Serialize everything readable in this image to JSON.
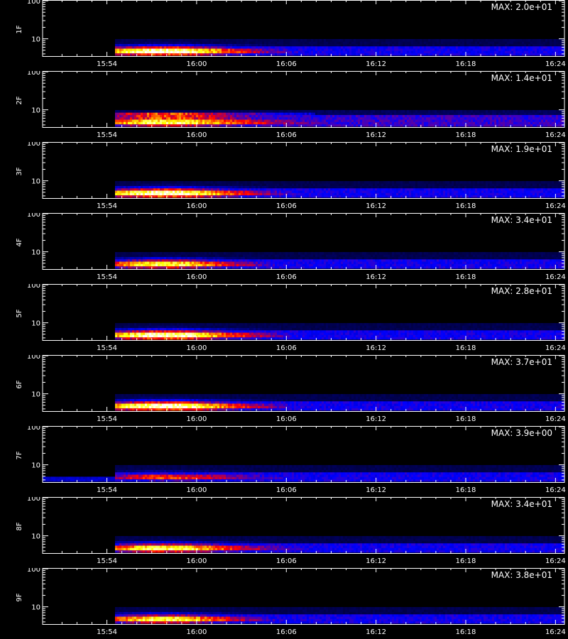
{
  "chart_data": {
    "type": "heatmap",
    "colormap": [
      "#000000",
      "#0000ff",
      "#ff0000",
      "#ffff00",
      "#ffffff"
    ],
    "x_ticks": [
      "15:54",
      "16:00",
      "16:06",
      "16:12",
      "16:18",
      "16:24"
    ],
    "x_range_minutes": [
      -4.3,
      30.6
    ],
    "x_tick_minutes": [
      0,
      6,
      12,
      18,
      24,
      30
    ],
    "y_scale": "log",
    "ylim": [
      3.5,
      105
    ],
    "y_tick_labels": [
      "10",
      "100"
    ],
    "y_tick_values": [
      10,
      100
    ],
    "xlabel": "",
    "panels": [
      {
        "label": "1F",
        "max": "MAX: 2.0e+01",
        "profile": "strong"
      },
      {
        "label": "2F",
        "max": "MAX: 1.4e+01",
        "profile": "broad"
      },
      {
        "label": "3F",
        "max": "MAX: 1.9e+01",
        "profile": "strong"
      },
      {
        "label": "4F",
        "max": "MAX: 3.4e+01",
        "profile": "medium"
      },
      {
        "label": "5F",
        "max": "MAX: 2.8e+01",
        "profile": "strong"
      },
      {
        "label": "6F",
        "max": "MAX: 3.7e+01",
        "profile": "strong"
      },
      {
        "label": "7F",
        "max": "MAX: 3.9e+00",
        "profile": "weak"
      },
      {
        "label": "8F",
        "max": "MAX: 3.4e+01",
        "profile": "patchy"
      },
      {
        "label": "9F",
        "max": "MAX: 3.8e+01",
        "profile": "medium"
      }
    ]
  }
}
